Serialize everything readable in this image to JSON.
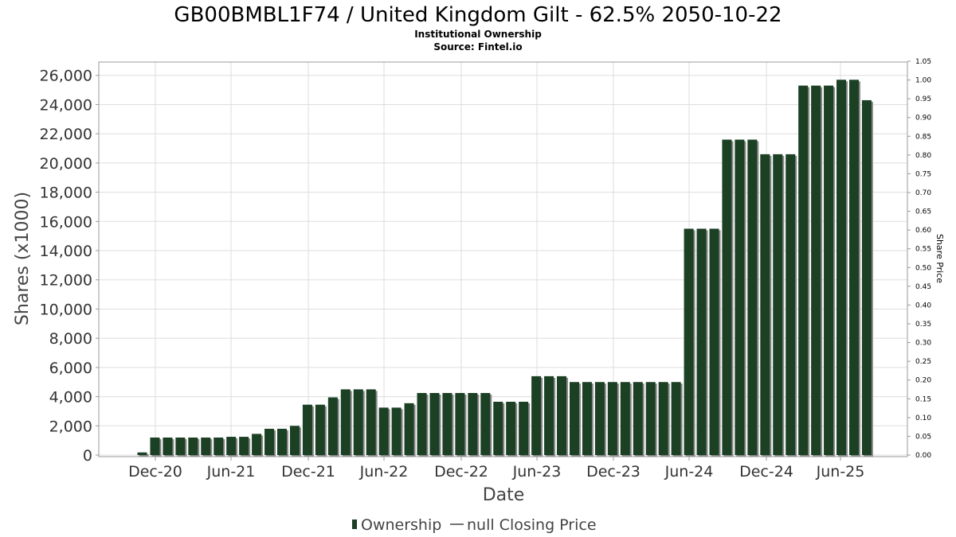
{
  "chart_data": {
    "type": "bar",
    "title": "GB00BMBL1F74 / United Kingdom Gilt - 62.5% 2050-10-22",
    "subtitle_lines": [
      "Institutional Ownership",
      "Source: Fintel.io"
    ],
    "xlabel": "Date",
    "ylabel": "Shares (x1000)",
    "y2label": "Share Price",
    "ylim": [
      0,
      27000
    ],
    "y2lim": [
      0,
      1.05
    ],
    "yticks": [
      "0",
      "2,000",
      "4,000",
      "6,000",
      "8,000",
      "10,000",
      "12,000",
      "14,000",
      "16,000",
      "18,000",
      "20,000",
      "22,000",
      "24,000",
      "26,000"
    ],
    "y2ticks": [
      "0.00",
      "0.05",
      "0.10",
      "0.15",
      "0.20",
      "0.25",
      "0.30",
      "0.35",
      "0.40",
      "0.45",
      "0.50",
      "0.55",
      "0.60",
      "0.65",
      "0.70",
      "0.75",
      "0.80",
      "0.85",
      "0.90",
      "0.95",
      "1.00",
      "1.05"
    ],
    "xticks": [
      "Dec-20",
      "Jun-21",
      "Dec-21",
      "Jun-22",
      "Dec-22",
      "Jun-23",
      "Dec-23",
      "Jun-24",
      "Dec-24",
      "Jun-25"
    ],
    "grid": true,
    "legend_position": "bottom-center",
    "series": [
      {
        "name": "Ownership",
        "color": "#1b4024",
        "values": [
          180,
          1200,
          1200,
          1200,
          1200,
          1200,
          1200,
          1250,
          1250,
          1450,
          1800,
          1800,
          2000,
          3450,
          3450,
          3950,
          4500,
          4500,
          4500,
          3250,
          3250,
          3550,
          4250,
          4250,
          4250,
          4250,
          4250,
          4250,
          3650,
          3650,
          3650,
          5400,
          5400,
          5400,
          5000,
          5000,
          5000,
          5000,
          5000,
          5000,
          5000,
          5000,
          5000,
          15500,
          15500,
          15500,
          21600,
          21600,
          21600,
          20600,
          20600,
          20600,
          25300,
          25300,
          25300,
          25700,
          25700,
          24300
        ]
      },
      {
        "name": "null Closing Price",
        "values": []
      }
    ]
  },
  "legend": {
    "ownership_label": "Ownership",
    "price_label": "null Closing Price"
  }
}
